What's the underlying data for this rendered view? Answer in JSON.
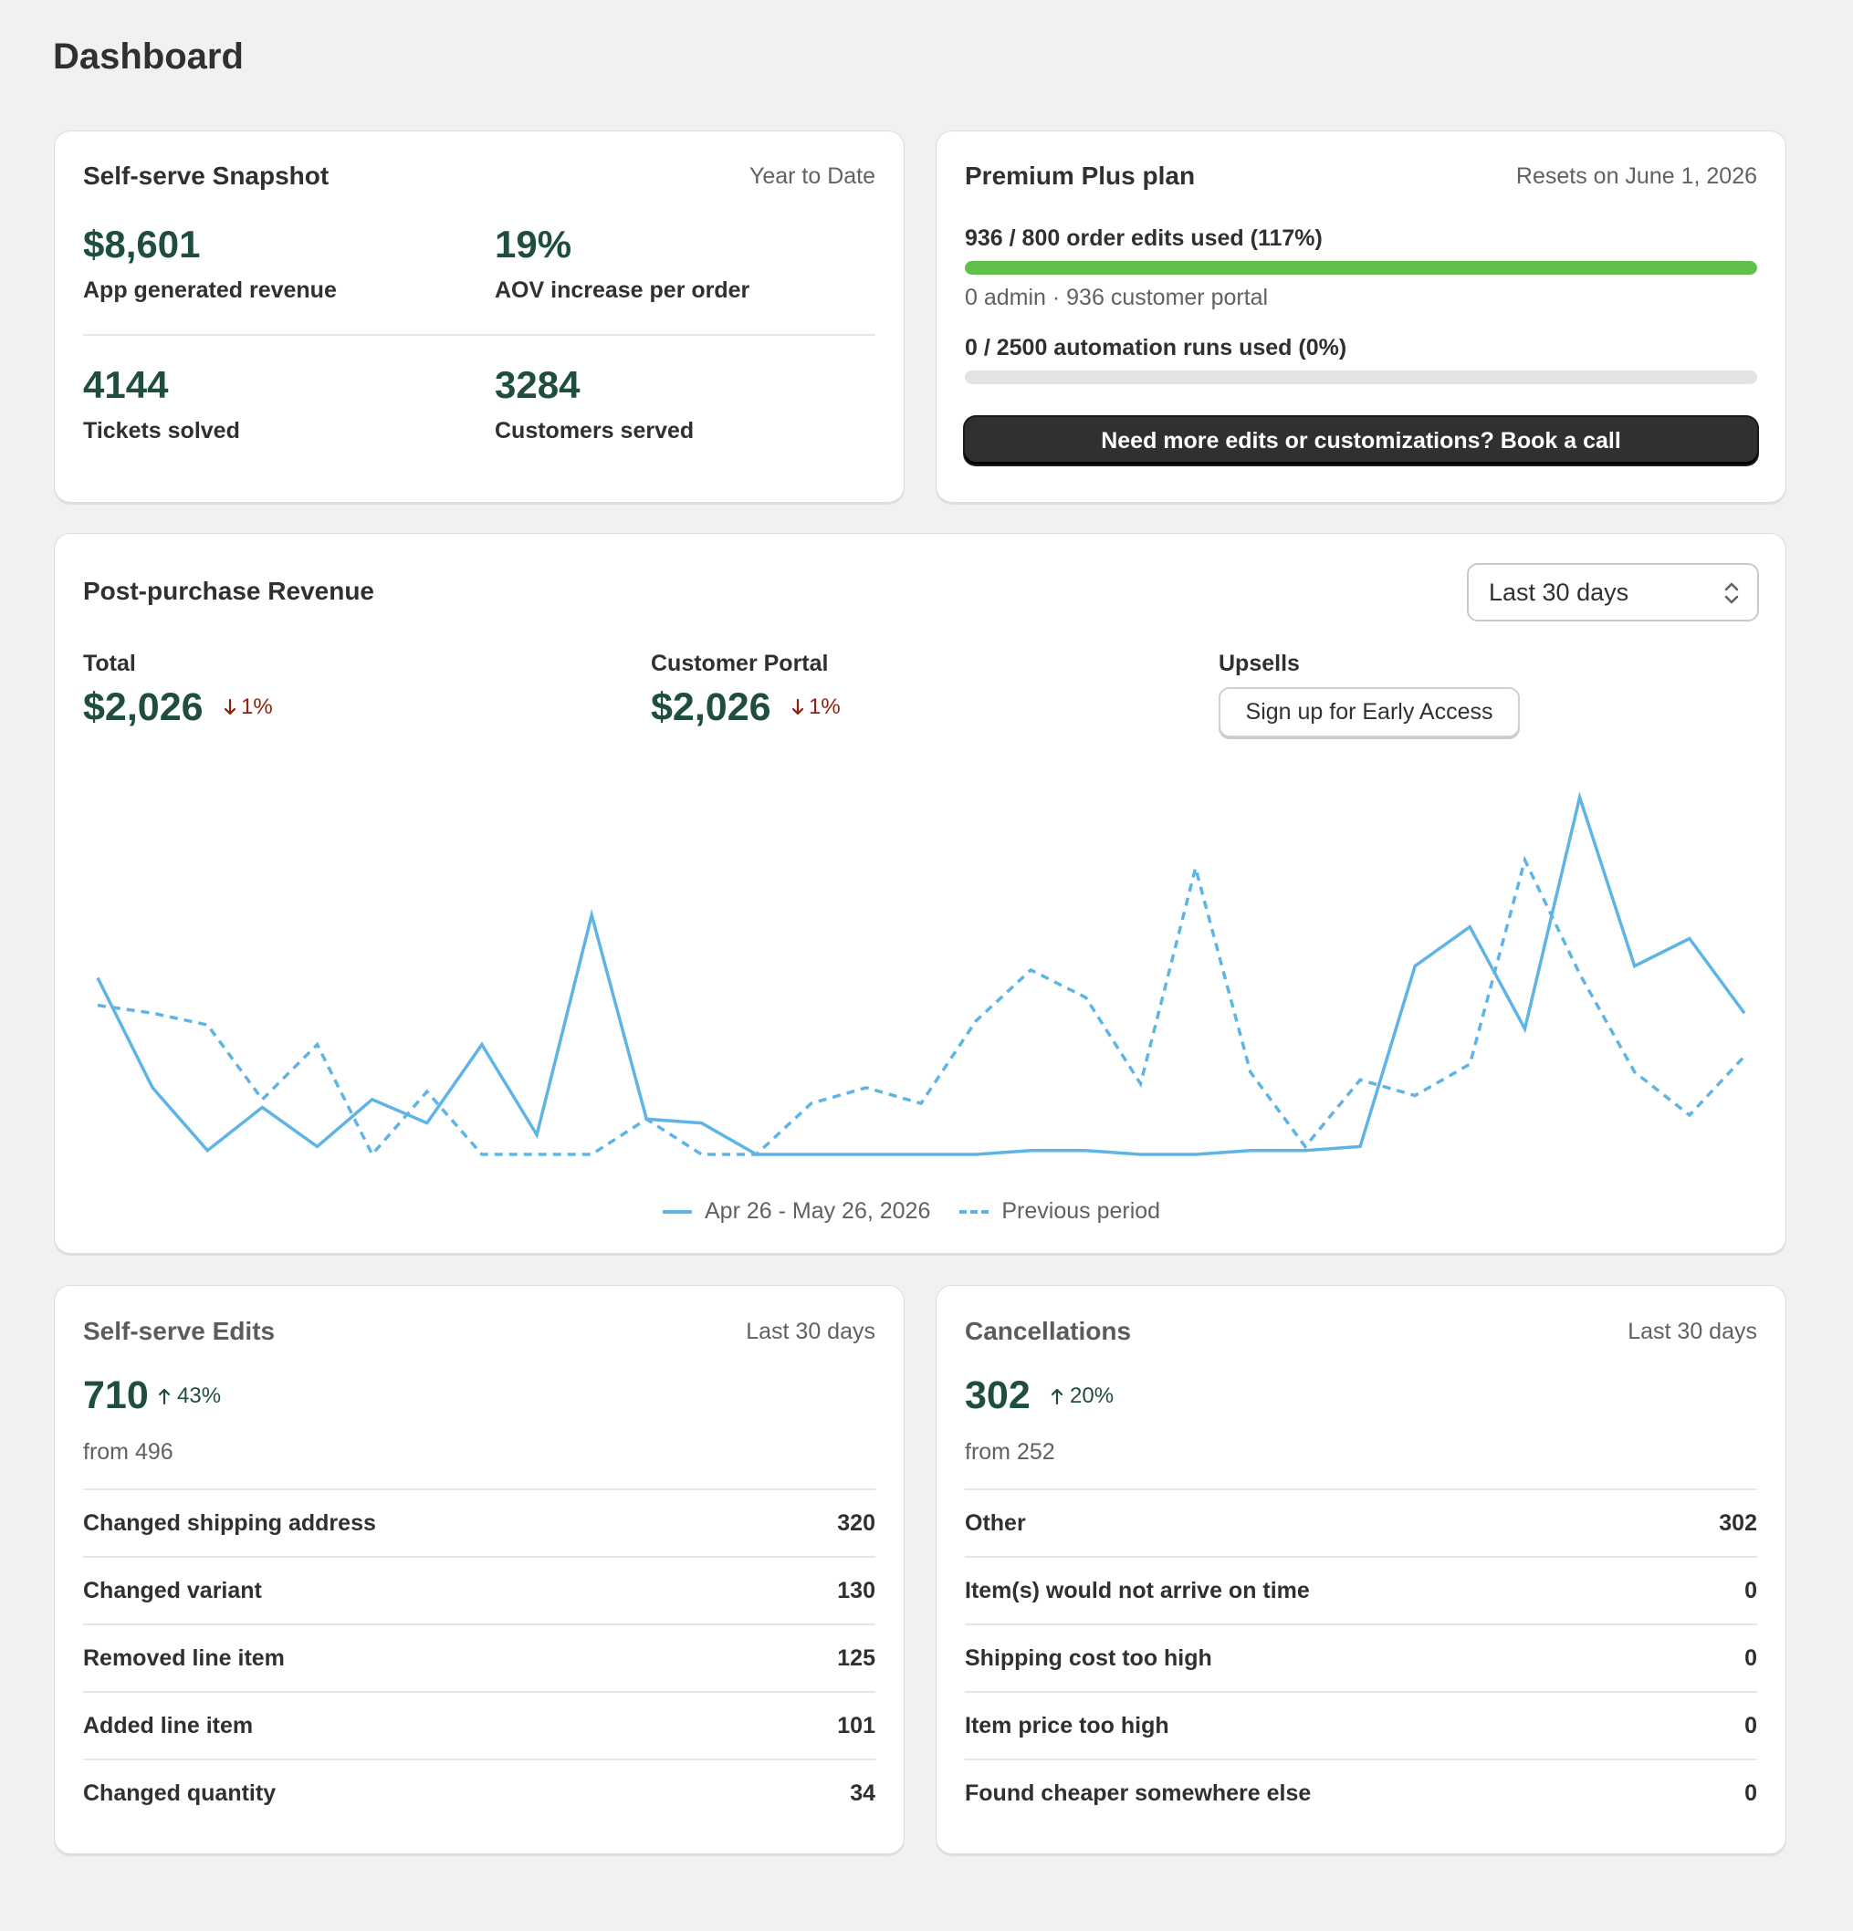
{
  "page": {
    "title": "Dashboard"
  },
  "snapshot": {
    "title": "Self-serve Snapshot",
    "period": "Year to Date",
    "metrics": [
      {
        "value": "$8,601",
        "label": "App generated revenue"
      },
      {
        "value": "19%",
        "label": "AOV increase per order"
      },
      {
        "value": "4144",
        "label": "Tickets solved"
      },
      {
        "value": "3284",
        "label": "Customers served"
      }
    ]
  },
  "plan": {
    "title": "Premium Plus plan",
    "resets": "Resets on June 1, 2026",
    "edits_usage": "936 / 800 order edits used (117%)",
    "edits_fill": 1.0,
    "edits_breakdown": "0 admin · 936 customer portal",
    "runs_usage": "0 / 2500 automation runs used (0%)",
    "runs_fill": 0.0,
    "cta": "Need more edits or customizations? Book a call",
    "colors": {
      "bar_fill": "#5ec24a",
      "bar_track": "#e3e3e3"
    }
  },
  "revenue": {
    "title": "Post-purchase Revenue",
    "range_select": "Last 30 days",
    "total": {
      "label": "Total",
      "value": "$2,026",
      "delta": "1%",
      "direction": "down"
    },
    "portal": {
      "label": "Customer Portal",
      "value": "$2,026",
      "delta": "1%",
      "direction": "down"
    },
    "upsells": {
      "label": "Upsells",
      "button": "Sign up for Early Access"
    },
    "legend": {
      "current": "Apr 26 - May 26, 2026",
      "previous": "Previous period"
    }
  },
  "chart_data": {
    "type": "line",
    "x": [
      1,
      2,
      3,
      4,
      5,
      6,
      7,
      8,
      9,
      10,
      11,
      12,
      13,
      14,
      15,
      16,
      17,
      18,
      19,
      20,
      21,
      22,
      23,
      24,
      25,
      26,
      27,
      28,
      29,
      30,
      31
    ],
    "ylim": [
      0,
      100
    ],
    "grid": false,
    "legend_position": "bottom-center",
    "series": [
      {
        "name": "Apr 26 - May 26, 2026",
        "style": "solid",
        "color": "#5fb4e6",
        "values": [
          45,
          17,
          1,
          12,
          2,
          14,
          8,
          28,
          5,
          61,
          9,
          8,
          0,
          0,
          0,
          0,
          0,
          1,
          1,
          0,
          0,
          1,
          1,
          2,
          48,
          58,
          32,
          91,
          48,
          55,
          36
        ]
      },
      {
        "name": "Previous period",
        "style": "dashed",
        "color": "#5fb4e6",
        "values": [
          38,
          36,
          33,
          14,
          28,
          0,
          16,
          0,
          0,
          0,
          9,
          0,
          0,
          13,
          17,
          13,
          34,
          47,
          40,
          18,
          73,
          21,
          2,
          19,
          15,
          23,
          75,
          46,
          21,
          10,
          25
        ]
      }
    ]
  },
  "edits": {
    "title": "Self-serve Edits",
    "period": "Last 30 days",
    "value": "710",
    "delta": "43%",
    "from": "from 496",
    "rows": [
      {
        "label": "Changed shipping address",
        "value": "320"
      },
      {
        "label": "Changed variant",
        "value": "130"
      },
      {
        "label": "Removed line item",
        "value": "125"
      },
      {
        "label": "Added line item",
        "value": "101"
      },
      {
        "label": "Changed quantity",
        "value": "34"
      }
    ]
  },
  "cancellations": {
    "title": "Cancellations",
    "period": "Last 30 days",
    "value": "302",
    "delta": "20%",
    "from": "from 252",
    "rows": [
      {
        "label": "Other",
        "value": "302"
      },
      {
        "label": "Item(s) would not arrive on time",
        "value": "0"
      },
      {
        "label": "Shipping cost too high",
        "value": "0"
      },
      {
        "label": "Item price too high",
        "value": "0"
      },
      {
        "label": "Found cheaper somewhere else",
        "value": "0"
      }
    ]
  }
}
